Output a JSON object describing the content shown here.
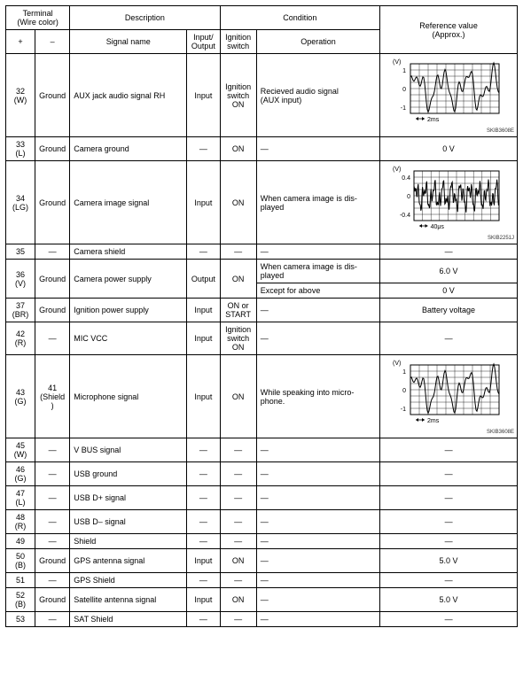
{
  "header": {
    "terminal": "Terminal\n(Wire color)",
    "plus": "+",
    "minus": "–",
    "description": "Description",
    "signal_name": "Signal name",
    "input_output": "Input/\nOutput",
    "condition": "Condition",
    "ignition_switch": "Ignition\nswitch",
    "operation": "Operation",
    "reference": "Reference value\n(Approx.)"
  },
  "dash": "—",
  "waveform_axes": {
    "y_label": "(V)",
    "y_vals_a": [
      "1",
      "0",
      "-1"
    ],
    "y_vals_b": [
      "0.4",
      "0",
      "-0.4"
    ],
    "time_a": "2ms",
    "time_b": "40μs"
  },
  "rows": [
    {
      "plus": "32\n(W)",
      "minus": "Ground",
      "signal": "AUX jack audio signal RH",
      "io": "Input",
      "ign": "Ignition\nswitch\nON",
      "op": "Recieved audio signal\n(AUX input)",
      "ref_type": "wave_a",
      "ref_code": "SKIB3608E"
    },
    {
      "plus": "33\n(L)",
      "minus": "Ground",
      "signal": "Camera ground",
      "io": "—",
      "ign": "ON",
      "op": "—",
      "ref_type": "text",
      "ref": "0 V"
    },
    {
      "plus": "34\n(LG)",
      "minus": "Ground",
      "signal": "Camera image signal",
      "io": "Input",
      "ign": "ON",
      "op": "When camera image is dis-\nplayed",
      "ref_type": "wave_b",
      "ref_code": "SKIB2251J"
    },
    {
      "plus": "35",
      "minus": "—",
      "signal": "Camera shield",
      "io": "—",
      "ign": "—",
      "op": "—",
      "ref_type": "text",
      "ref": "—"
    },
    {
      "plus": "36\n(V)",
      "minus": "Ground",
      "signal": "Camera power supply",
      "io": "Output",
      "ign": "ON",
      "op": "When camera image is dis-\nplayed",
      "ref_type": "text",
      "ref": "6.0 V",
      "has_second": true,
      "op2": "Except for above",
      "ref2": "0 V"
    },
    {
      "plus": "37\n(BR)",
      "minus": "Ground",
      "signal": "Ignition power supply",
      "io": "Input",
      "ign": "ON or\nSTART",
      "op": "—",
      "ref_type": "text",
      "ref": "Battery voltage"
    },
    {
      "plus": "42\n(R)",
      "minus": "—",
      "signal": "MIC VCC",
      "io": "Input",
      "ign": "Ignition\nswitch\nON",
      "op": "—",
      "ref_type": "text",
      "ref": "—"
    },
    {
      "plus": "43\n(G)",
      "minus": "41\n(Shield)",
      "signal": "Microphone signal",
      "io": "Input",
      "ign": "ON",
      "op": "While speaking into micro-\nphone.",
      "ref_type": "wave_a",
      "ref_code": "SKIB3608E"
    },
    {
      "plus": "45\n(W)",
      "minus": "—",
      "signal": "V BUS signal",
      "io": "—",
      "ign": "—",
      "op": "—",
      "ref_type": "text",
      "ref": "—"
    },
    {
      "plus": "46\n(G)",
      "minus": "—",
      "signal": "USB ground",
      "io": "—",
      "ign": "—",
      "op": "—",
      "ref_type": "text",
      "ref": "—"
    },
    {
      "plus": "47\n(L)",
      "minus": "—",
      "signal": "USB D+ signal",
      "io": "—",
      "ign": "—",
      "op": "—",
      "ref_type": "text",
      "ref": "—"
    },
    {
      "plus": "48\n(R)",
      "minus": "—",
      "signal": "USB D– signal",
      "io": "—",
      "ign": "—",
      "op": "—",
      "ref_type": "text",
      "ref": "—"
    },
    {
      "plus": "49",
      "minus": "—",
      "signal": "Shield",
      "io": "—",
      "ign": "—",
      "op": "—",
      "ref_type": "text",
      "ref": "—"
    },
    {
      "plus": "50\n(B)",
      "minus": "Ground",
      "signal": "GPS antenna signal",
      "io": "Input",
      "ign": "ON",
      "op": "—",
      "ref_type": "text",
      "ref": "5.0 V"
    },
    {
      "plus": "51",
      "minus": "—",
      "signal": "GPS Shield",
      "io": "—",
      "ign": "—",
      "op": "—",
      "ref_type": "text",
      "ref": "—"
    },
    {
      "plus": "52\n(B)",
      "minus": "Ground",
      "signal": "Satellite antenna signal",
      "io": "Input",
      "ign": "ON",
      "op": "—",
      "ref_type": "text",
      "ref": "5.0 V"
    },
    {
      "plus": "53",
      "minus": "—",
      "signal": "SAT Shield",
      "io": "—",
      "ign": "—",
      "op": "—",
      "ref_type": "text",
      "ref": "—"
    }
  ],
  "columns": {
    "widths": [
      32,
      38,
      120,
      34,
      40,
      120,
      140
    ]
  }
}
